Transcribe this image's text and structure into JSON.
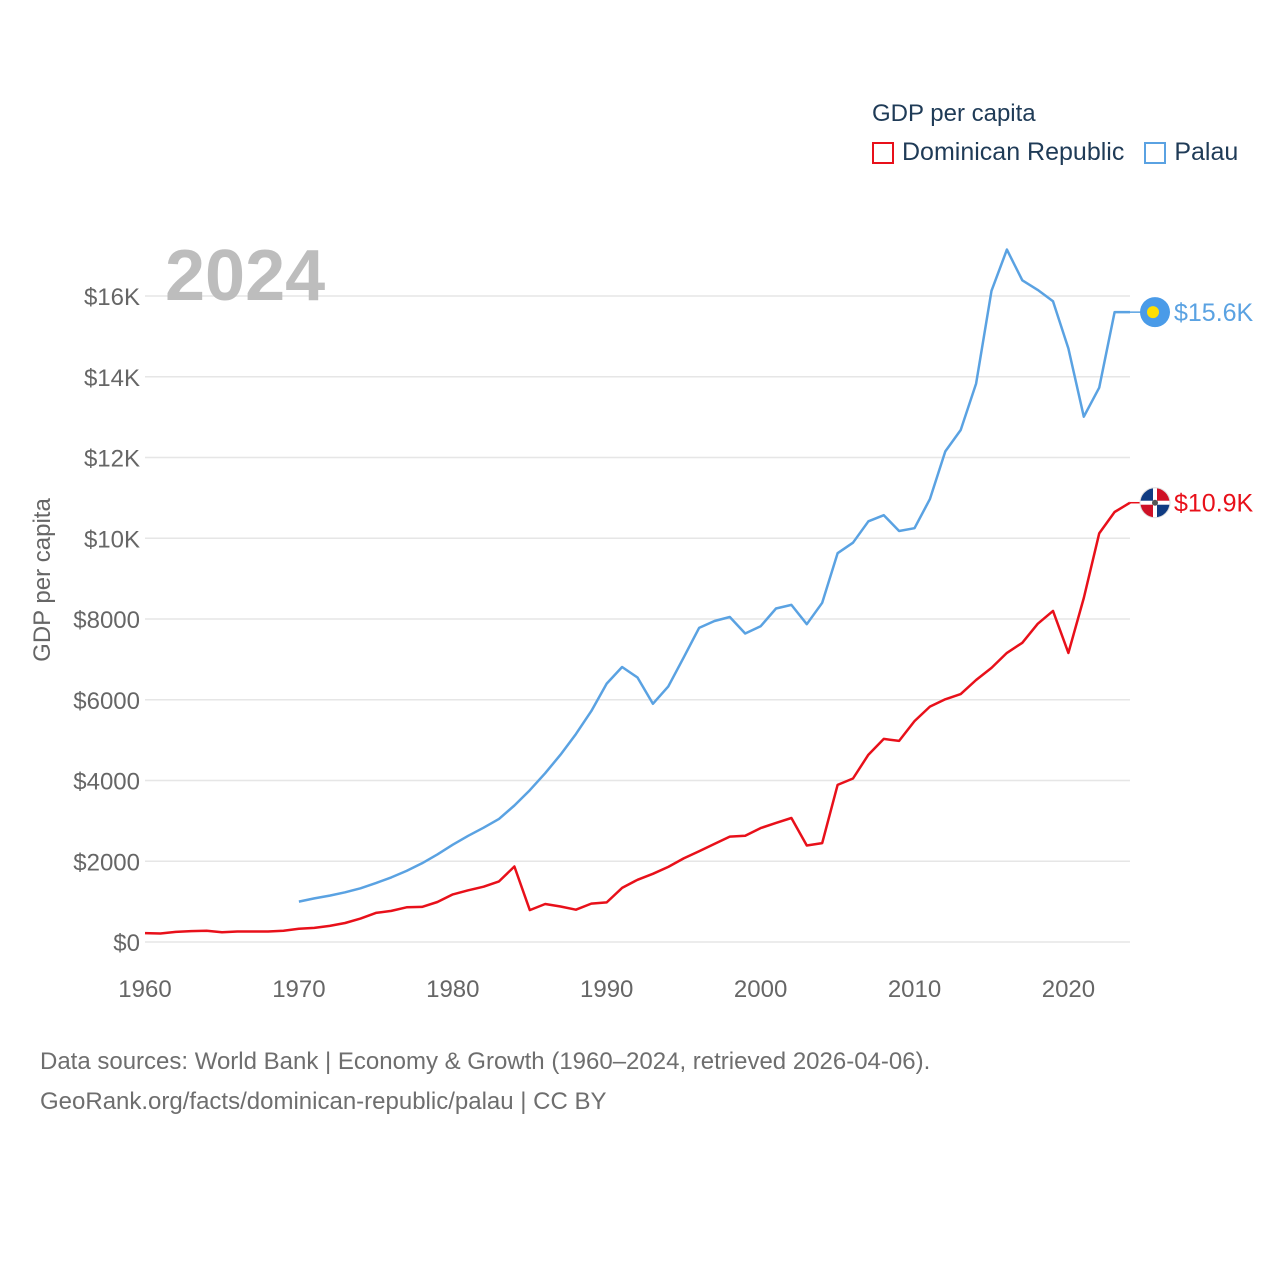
{
  "legend": {
    "title": "GDP per capita",
    "items": [
      "Dominican Republic",
      "Palau"
    ]
  },
  "footer": {
    "line1": "Data sources: World Bank | Economy & Growth (1960–2024, retrieved 2026-04-06).",
    "line2": "GeoRank.org/facts/dominican-republic/palau | CC BY"
  },
  "chart_data": {
    "type": "line",
    "title": "GDP per capita",
    "year_label": "2024",
    "ylabel": "GDP per capita",
    "xlabel": "",
    "xlim": [
      1960,
      2024
    ],
    "ylim": [
      0,
      17500
    ],
    "x_ticks": [
      1960,
      1970,
      1980,
      1990,
      2000,
      2010,
      2020
    ],
    "y_ticks": [
      {
        "value": 0,
        "label": "$0"
      },
      {
        "value": 2000,
        "label": "$2000"
      },
      {
        "value": 4000,
        "label": "$4000"
      },
      {
        "value": 6000,
        "label": "$6000"
      },
      {
        "value": 8000,
        "label": "$8000"
      },
      {
        "value": 10000,
        "label": "$10K"
      },
      {
        "value": 12000,
        "label": "$12K"
      },
      {
        "value": 14000,
        "label": "$14K"
      },
      {
        "value": 16000,
        "label": "$16K"
      }
    ],
    "grid": true,
    "series": [
      {
        "name": "Dominican Republic",
        "color": "#e8101a",
        "end_label": "$10.9K",
        "x_start": 1960,
        "values": [
          220,
          210,
          250,
          270,
          280,
          240,
          260,
          260,
          260,
          280,
          330,
          350,
          400,
          470,
          580,
          720,
          770,
          860,
          870,
          990,
          1180,
          1280,
          1370,
          1500,
          1870,
          790,
          940,
          880,
          800,
          950,
          980,
          1340,
          1540,
          1690,
          1860,
          2070,
          2250,
          2430,
          2610,
          2630,
          2820,
          2950,
          3070,
          2390,
          2450,
          3890,
          4050,
          4640,
          5030,
          4980,
          5470,
          5830,
          6010,
          6140,
          6490,
          6790,
          7160,
          7410,
          7880,
          8200,
          7160,
          8520,
          10120,
          10650,
          10880
        ]
      },
      {
        "name": "Palau",
        "color": "#5aa2e2",
        "end_label": "$15.6K",
        "x_start": 1970,
        "values": [
          1000,
          1080,
          1150,
          1230,
          1330,
          1460,
          1600,
          1760,
          1950,
          2170,
          2410,
          2630,
          2830,
          3050,
          3380,
          3760,
          4180,
          4640,
          5150,
          5720,
          6400,
          6810,
          6550,
          5900,
          6330,
          7050,
          7780,
          7950,
          8050,
          7640,
          7820,
          8260,
          8350,
          7870,
          8400,
          9630,
          9890,
          10420,
          10570,
          10180,
          10250,
          10970,
          12150,
          12680,
          13830,
          16130,
          17150,
          16390,
          16150,
          15870,
          14700,
          13010,
          13730,
          15600,
          15600
        ]
      }
    ]
  },
  "style": {
    "grid_color": "#e6e6e6",
    "axis_text_color": "#666666",
    "year_color": "#bdbdbd",
    "dom_flag_blue": "#0f3b82",
    "dom_flag_red": "#ce1126",
    "palau_blue": "#4a9be8",
    "palau_yellow": "#ffde00"
  }
}
